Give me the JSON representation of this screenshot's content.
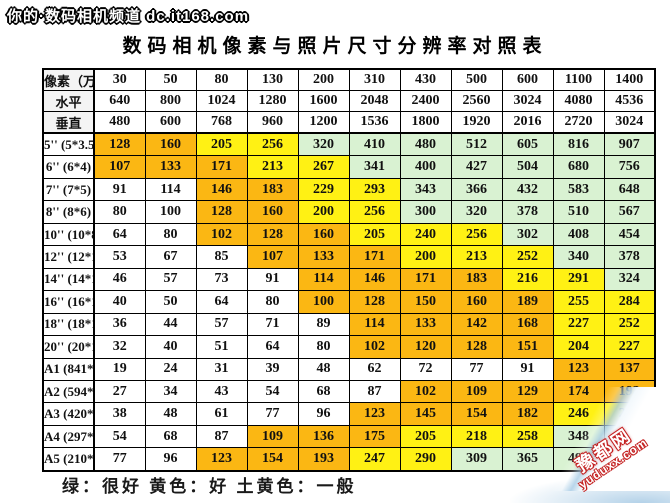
{
  "watermark_top": "你的·数码相机频道 dc.it168.com",
  "title": "数码相机像素与照片尺寸分辨率对照表",
  "legend_text": "绿：很好  黄色：好  土黄色：一般",
  "corner_stamp": {
    "site_name": "豫都网",
    "site_url": "yuduxx.com"
  },
  "colors": {
    "n": "#FFFFFF",
    "a": "#FBB713",
    "g": "#FFF114",
    "v": "#D9F2D2"
  },
  "color_meanings": {
    "v": "很好",
    "g": "好",
    "a": "一般"
  },
  "table": {
    "header_rows": [
      {
        "label": "像素（万）",
        "values": [
          "30",
          "50",
          "80",
          "130",
          "200",
          "310",
          "430",
          "500",
          "600",
          "1100",
          "1400"
        ]
      },
      {
        "label": "水平",
        "values": [
          "640",
          "800",
          "1024",
          "1280",
          "1600",
          "2048",
          "2400",
          "2560",
          "3024",
          "4080",
          "4536"
        ]
      },
      {
        "label": "垂直",
        "values": [
          "480",
          "600",
          "768",
          "960",
          "1200",
          "1536",
          "1800",
          "1920",
          "2016",
          "2720",
          "3024"
        ]
      }
    ],
    "rows": [
      {
        "label": "5'' (5*3.5)",
        "values": [
          "128",
          "160",
          "205",
          "256",
          "320",
          "410",
          "480",
          "512",
          "605",
          "816",
          "907"
        ],
        "ratings": "aaggvvvvvvv"
      },
      {
        "label": "6'' (6*4)",
        "values": [
          "107",
          "133",
          "171",
          "213",
          "267",
          "341",
          "400",
          "427",
          "504",
          "680",
          "756"
        ],
        "ratings": "aaaggvvvvvv"
      },
      {
        "label": "7'' (7*5)",
        "values": [
          "91",
          "114",
          "146",
          "183",
          "229",
          "293",
          "343",
          "366",
          "432",
          "583",
          "648"
        ],
        "ratings": "nnaaggvvvvv"
      },
      {
        "label": "8'' (8*6)",
        "values": [
          "80",
          "100",
          "128",
          "160",
          "200",
          "256",
          "300",
          "320",
          "378",
          "510",
          "567"
        ],
        "ratings": "nnaaggvvvvv"
      },
      {
        "label": "10'' (10*8)",
        "values": [
          "64",
          "80",
          "102",
          "128",
          "160",
          "205",
          "240",
          "256",
          "302",
          "408",
          "454"
        ],
        "ratings": "nnaaagggvvv"
      },
      {
        "label": "12'' (12*10)",
        "values": [
          "53",
          "67",
          "85",
          "107",
          "133",
          "171",
          "200",
          "213",
          "252",
          "340",
          "378"
        ],
        "ratings": "nnnaaagggvv"
      },
      {
        "label": "14'' (14*12)",
        "values": [
          "46",
          "57",
          "73",
          "91",
          "114",
          "146",
          "171",
          "183",
          "216",
          "291",
          "324"
        ],
        "ratings": "nnnnaaaaggv"
      },
      {
        "label": "16'' (16*12)",
        "values": [
          "40",
          "50",
          "64",
          "80",
          "100",
          "128",
          "150",
          "160",
          "189",
          "255",
          "284"
        ],
        "ratings": "nnnnaaaaagg"
      },
      {
        "label": "18'' (18*14)",
        "values": [
          "36",
          "44",
          "57",
          "71",
          "89",
          "114",
          "133",
          "142",
          "168",
          "227",
          "252"
        ],
        "ratings": "nnnnnaaaagg"
      },
      {
        "label": "20'' (20*16)",
        "values": [
          "32",
          "40",
          "51",
          "64",
          "80",
          "102",
          "120",
          "128",
          "151",
          "204",
          "227"
        ],
        "ratings": "nnnnnaaaagg"
      },
      {
        "label": "A1 (841*594)",
        "values": [
          "19",
          "24",
          "31",
          "39",
          "48",
          "62",
          "72",
          "77",
          "91",
          "123",
          "137"
        ],
        "ratings": "nnnnnnnnnaa"
      },
      {
        "label": "A2 (594*420)",
        "values": [
          "27",
          "34",
          "43",
          "54",
          "68",
          "87",
          "102",
          "109",
          "129",
          "174",
          "193"
        ],
        "ratings": "nnnnnnaaaaa"
      },
      {
        "label": "A3 (420*297)",
        "values": [
          "38",
          "48",
          "61",
          "77",
          "96",
          "123",
          "145",
          "154",
          "182",
          "246",
          "274"
        ],
        "ratings": "nnnnnaaaagg"
      },
      {
        "label": "A4 (297*210)",
        "values": [
          "54",
          "68",
          "87",
          "109",
          "136",
          "175",
          "205",
          "218",
          "258",
          "348",
          ""
        ],
        "ratings": "nnnaaagggvv"
      },
      {
        "label": "A5 (210*148)",
        "values": [
          "77",
          "96",
          "123",
          "154",
          "193",
          "247",
          "290",
          "309",
          "365",
          "493",
          "548"
        ],
        "ratings": "nnaaaggvvvv"
      }
    ]
  }
}
